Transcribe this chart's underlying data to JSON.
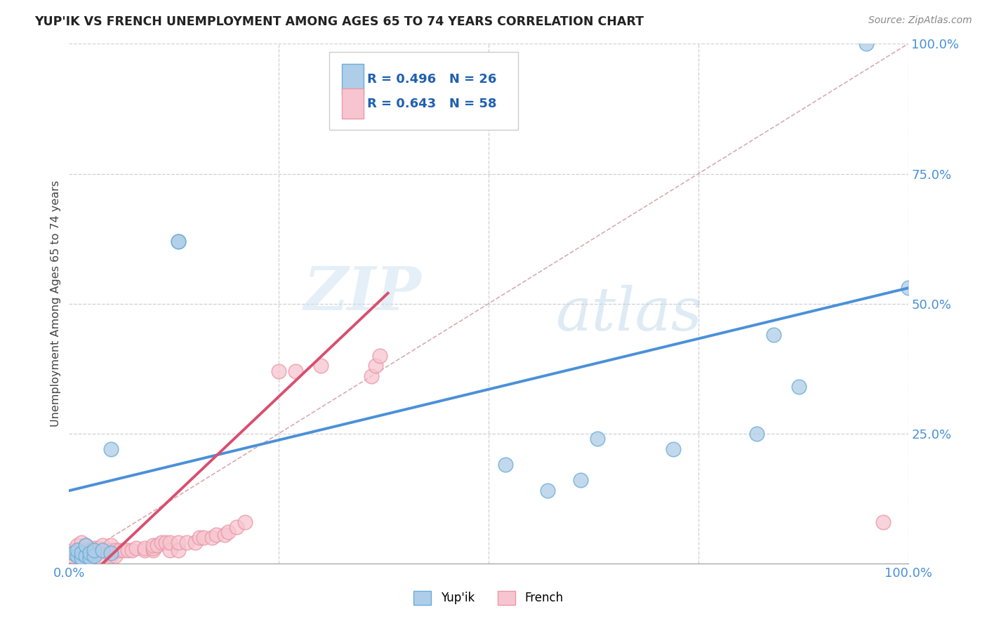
{
  "title": "YUP'IK VS FRENCH UNEMPLOYMENT AMONG AGES 65 TO 74 YEARS CORRELATION CHART",
  "source": "Source: ZipAtlas.com",
  "ylabel": "Unemployment Among Ages 65 to 74 years",
  "xlim": [
    0,
    1.0
  ],
  "ylim": [
    0,
    1.0
  ],
  "background_color": "#ffffff",
  "grid_color": "#d0d0d0",
  "watermark_zip": "ZIP",
  "watermark_atlas": "atlas",
  "legend_r_yupik": "R = 0.496",
  "legend_n_yupik": "N = 26",
  "legend_r_french": "R = 0.643",
  "legend_n_french": "N = 58",
  "yupik_color": "#aecde8",
  "french_color": "#f7c5d0",
  "yupik_edge_color": "#6aaed6",
  "french_edge_color": "#e899a8",
  "trend_yupik_color": "#4a90d9",
  "trend_french_color": "#d94f70",
  "diagonal_color": "#d8aab4",
  "yupik_points_x": [
    0.005,
    0.01,
    0.01,
    0.015,
    0.015,
    0.02,
    0.02,
    0.025,
    0.025,
    0.03,
    0.03,
    0.04,
    0.05,
    0.05,
    0.13,
    0.13,
    0.52,
    0.57,
    0.61,
    0.63,
    0.72,
    0.82,
    0.84,
    0.87,
    0.95,
    1.0
  ],
  "yupik_points_y": [
    0.02,
    0.015,
    0.025,
    0.01,
    0.02,
    0.015,
    0.035,
    0.01,
    0.02,
    0.015,
    0.025,
    0.025,
    0.02,
    0.22,
    0.62,
    0.62,
    0.19,
    0.14,
    0.16,
    0.24,
    0.22,
    0.25,
    0.44,
    0.34,
    1.0,
    0.53
  ],
  "french_points_x": [
    0.003,
    0.005,
    0.01,
    0.01,
    0.015,
    0.015,
    0.015,
    0.02,
    0.02,
    0.02,
    0.025,
    0.025,
    0.03,
    0.03,
    0.035,
    0.035,
    0.04,
    0.04,
    0.04,
    0.05,
    0.05,
    0.05,
    0.055,
    0.055,
    0.06,
    0.065,
    0.07,
    0.075,
    0.08,
    0.09,
    0.09,
    0.1,
    0.1,
    0.1,
    0.105,
    0.11,
    0.115,
    0.12,
    0.12,
    0.13,
    0.13,
    0.14,
    0.15,
    0.155,
    0.16,
    0.17,
    0.175,
    0.185,
    0.19,
    0.2,
    0.21,
    0.25,
    0.27,
    0.3,
    0.36,
    0.365,
    0.37,
    0.97
  ],
  "french_points_y": [
    0.015,
    0.025,
    0.02,
    0.035,
    0.02,
    0.03,
    0.04,
    0.015,
    0.025,
    0.035,
    0.015,
    0.025,
    0.02,
    0.03,
    0.02,
    0.03,
    0.015,
    0.025,
    0.035,
    0.015,
    0.025,
    0.035,
    0.015,
    0.025,
    0.025,
    0.025,
    0.025,
    0.025,
    0.03,
    0.025,
    0.03,
    0.025,
    0.03,
    0.035,
    0.035,
    0.04,
    0.04,
    0.025,
    0.04,
    0.025,
    0.04,
    0.04,
    0.04,
    0.05,
    0.05,
    0.05,
    0.055,
    0.055,
    0.06,
    0.07,
    0.08,
    0.37,
    0.37,
    0.38,
    0.36,
    0.38,
    0.4,
    0.08
  ],
  "yupik_trend_x": [
    0.0,
    1.0
  ],
  "yupik_trend_y": [
    0.14,
    0.53
  ],
  "french_trend_x": [
    0.04,
    0.38
  ],
  "french_trend_y": [
    0.0,
    0.52
  ]
}
